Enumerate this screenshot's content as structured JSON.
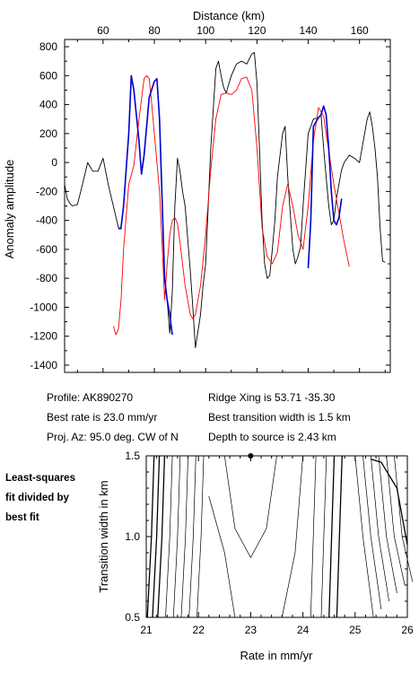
{
  "info": {
    "profile": "Profile: AK890270",
    "best_rate": "Best rate is 23.0 mm/yr",
    "proj_az": "Proj. Az: 95.0 deg. CW of N",
    "ridge_xing": "Ridge Xing is 53.71 -35.30",
    "best_transition": "Best transition width is 1.5 km",
    "depth": "Depth to source is   2.43 km"
  },
  "side_note": [
    "Least-squares",
    "fit divided by",
    "best fit"
  ],
  "chart_data": [
    {
      "type": "line",
      "xlabel": "Distance (km)",
      "ylabel": "Anomaly amplitude",
      "xlim": [
        45,
        172
      ],
      "ylim": [
        -1450,
        850
      ],
      "xticks": [
        60,
        80,
        100,
        120,
        140,
        160
      ],
      "yticks": [
        800,
        600,
        400,
        200,
        0,
        -200,
        -400,
        -600,
        -800,
        -1000,
        -1200,
        -1400
      ],
      "x_axis_position": "top",
      "series": [
        {
          "color": "#000000",
          "x": [
            45,
            46,
            47,
            48,
            50,
            52,
            54,
            56,
            58,
            60,
            62,
            64,
            66,
            67,
            68,
            70,
            71,
            72,
            74,
            75,
            76,
            78,
            80,
            81,
            82,
            84,
            85,
            86,
            87,
            88,
            89,
            90,
            91,
            92,
            94,
            95,
            96,
            98,
            99,
            100,
            101,
            102,
            104,
            105,
            106,
            107,
            108,
            109,
            110,
            112,
            114,
            116,
            118,
            119,
            120,
            121,
            122,
            123,
            124,
            125,
            126,
            127,
            128,
            130,
            131,
            132,
            133,
            134,
            135,
            136,
            137,
            138,
            140,
            142,
            144,
            145,
            146,
            147,
            148,
            149,
            150,
            151,
            152,
            153,
            154,
            156,
            158,
            160,
            162,
            163,
            164,
            165,
            166,
            167,
            168,
            169,
            170
          ],
          "y": [
            -150,
            -250,
            -280,
            -300,
            -290,
            -150,
            0,
            -60,
            -60,
            30,
            -150,
            -300,
            -450,
            -460,
            -300,
            200,
            600,
            500,
            150,
            -80,
            50,
            450,
            560,
            580,
            300,
            -800,
            -950,
            -1180,
            -900,
            -300,
            30,
            -60,
            -200,
            -300,
            -750,
            -1000,
            -1280,
            -1050,
            -850,
            -700,
            -300,
            100,
            650,
            700,
            600,
            520,
            480,
            540,
            600,
            680,
            700,
            680,
            750,
            760,
            550,
            100,
            -400,
            -700,
            -800,
            -780,
            -600,
            -400,
            -100,
            200,
            250,
            -100,
            -350,
            -600,
            -700,
            -650,
            -580,
            -300,
            200,
            300,
            310,
            330,
            100,
            -100,
            -300,
            -430,
            -400,
            -250,
            -150,
            -50,
            0,
            50,
            30,
            0,
            200,
            300,
            350,
            250,
            100,
            -100,
            -450,
            -680,
            -690
          ],
          "extra": []
        },
        {
          "color": "#ff0000",
          "x": [
            64,
            65,
            66,
            67,
            68,
            70,
            72,
            74,
            76,
            77,
            78,
            79,
            80,
            82,
            83,
            84,
            85,
            86,
            87,
            88,
            89,
            90,
            92,
            94,
            95,
            96,
            98,
            100,
            102,
            104,
            106,
            108,
            110,
            112,
            114,
            116,
            118,
            120,
            122,
            124,
            126,
            128,
            130,
            132,
            134,
            136,
            138,
            140,
            142,
            144,
            146,
            148,
            150,
            152,
            154,
            156
          ],
          "y": [
            -1130,
            -1190,
            -1150,
            -950,
            -600,
            -150,
            -20,
            300,
            580,
            600,
            580,
            400,
            200,
            -200,
            -550,
            -950,
            -700,
            -500,
            -400,
            -380,
            -420,
            -550,
            -850,
            -1050,
            -1080,
            -1050,
            -850,
            -500,
            -50,
            300,
            470,
            480,
            470,
            500,
            580,
            590,
            500,
            100,
            -450,
            -650,
            -700,
            -620,
            -300,
            -150,
            -300,
            -500,
            -600,
            -300,
            150,
            380,
            320,
            80,
            -150,
            -350,
            -550,
            -720
          ]
        },
        {
          "color": "#0000cc",
          "x": [
            66,
            67,
            68,
            70,
            71,
            72,
            74,
            75,
            76,
            78,
            80,
            81,
            82,
            84,
            85,
            86,
            87
          ],
          "y": [
            -460,
            -450,
            -300,
            200,
            600,
            500,
            150,
            -80,
            50,
            450,
            560,
            580,
            300,
            -800,
            -950,
            -1050,
            -1190
          ]
        },
        {
          "color": "#0000cc",
          "x": [
            140,
            141,
            142,
            144,
            145,
            146,
            147,
            148,
            149,
            150,
            151,
            152,
            153
          ],
          "y": [
            -730,
            -400,
            250,
            310,
            330,
            390,
            330,
            100,
            -200,
            -400,
            -430,
            -380,
            -250
          ]
        }
      ]
    },
    {
      "type": "contour",
      "xlabel": "Rate in mm/yr",
      "ylabel": "Transition width in km",
      "xlim": [
        21,
        26
      ],
      "ylim": [
        0.5,
        1.5
      ],
      "xticks": [
        21,
        22,
        23,
        24,
        25,
        26
      ],
      "yticks": [
        0.5,
        1.0,
        1.5
      ],
      "best_fit": {
        "x": 23.0,
        "y": 1.5
      }
    }
  ]
}
